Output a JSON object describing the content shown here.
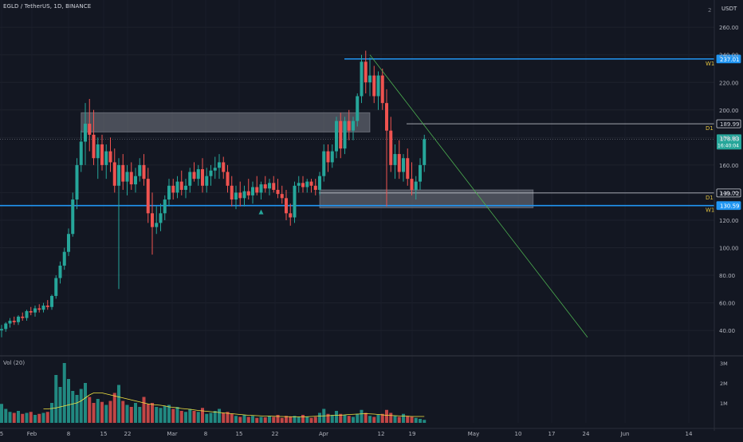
{
  "header": {
    "symbol_line": "EGLD / TetherUS, 1D, BINANCE"
  },
  "volume": {
    "label": "Vol (20)"
  },
  "price_axis": {
    "currency": "USDT",
    "ticks": [
      "260.00",
      "240.00",
      "220.00",
      "200.00",
      "180.00",
      "160.00",
      "140.00",
      "120.00",
      "100.00",
      "80.00",
      "60.00",
      "40.00"
    ],
    "top_value": "2"
  },
  "volume_axis": {
    "ticks": [
      "3M",
      "2M",
      "1M"
    ]
  },
  "time_axis": {
    "ticks": [
      "5",
      "Feb",
      "8",
      "15",
      "22",
      "Mar",
      "8",
      "15",
      "22",
      "Apr",
      "12",
      "19",
      "May",
      "10",
      "17",
      "24",
      "Jun",
      "14"
    ]
  },
  "levels": [
    {
      "price": 237.01,
      "label": "237.01",
      "tag": "W1",
      "color": "#2196f3"
    },
    {
      "price": 189.99,
      "label": "189.99",
      "tag": "D1",
      "color": "#d1d4dc"
    },
    {
      "price": 139.72,
      "label": "139.72",
      "tag": "D1",
      "color": "#d1d4dc"
    },
    {
      "price": 130.59,
      "label": "130.59",
      "tag": "W1",
      "color": "#2196f3"
    }
  ],
  "last_price": {
    "price": "178.83",
    "countdown": "16:40:04",
    "color": "#26a69a"
  },
  "colors": {
    "up": "#26a69a",
    "down": "#ef5350",
    "background": "#131722",
    "zone": "#787b86",
    "trendline": "#4caf50",
    "ma": "#f5e642"
  },
  "chart_data": {
    "type": "candlestick",
    "title": "EGLD / TetherUS, 1D, BINANCE",
    "ylim": [
      30,
      265
    ],
    "x_range_days": [
      0,
      168
    ],
    "candles": [
      {
        "d": 0,
        "o": 40,
        "h": 44,
        "l": 35,
        "c": 41
      },
      {
        "d": 1,
        "o": 41,
        "h": 46,
        "l": 39,
        "c": 45
      },
      {
        "d": 2,
        "o": 45,
        "h": 49,
        "l": 42,
        "c": 47
      },
      {
        "d": 3,
        "o": 47,
        "h": 50,
        "l": 44,
        "c": 46
      },
      {
        "d": 4,
        "o": 46,
        "h": 51,
        "l": 44,
        "c": 50
      },
      {
        "d": 5,
        "o": 50,
        "h": 53,
        "l": 47,
        "c": 49
      },
      {
        "d": 6,
        "o": 49,
        "h": 55,
        "l": 47,
        "c": 54
      },
      {
        "d": 7,
        "o": 54,
        "h": 57,
        "l": 51,
        "c": 53
      },
      {
        "d": 8,
        "o": 53,
        "h": 58,
        "l": 50,
        "c": 56
      },
      {
        "d": 9,
        "o": 56,
        "h": 59,
        "l": 53,
        "c": 55
      },
      {
        "d": 10,
        "o": 55,
        "h": 60,
        "l": 53,
        "c": 58
      },
      {
        "d": 11,
        "o": 58,
        "h": 62,
        "l": 55,
        "c": 57
      },
      {
        "d": 12,
        "o": 57,
        "h": 66,
        "l": 55,
        "c": 65
      },
      {
        "d": 13,
        "o": 65,
        "h": 80,
        "l": 63,
        "c": 78
      },
      {
        "d": 14,
        "o": 78,
        "h": 90,
        "l": 74,
        "c": 87
      },
      {
        "d": 15,
        "o": 87,
        "h": 100,
        "l": 84,
        "c": 97
      },
      {
        "d": 16,
        "o": 97,
        "h": 114,
        "l": 94,
        "c": 110
      },
      {
        "d": 17,
        "o": 110,
        "h": 140,
        "l": 108,
        "c": 135
      },
      {
        "d": 18,
        "o": 135,
        "h": 165,
        "l": 128,
        "c": 160
      },
      {
        "d": 19,
        "o": 160,
        "h": 185,
        "l": 155,
        "c": 177
      },
      {
        "d": 20,
        "o": 177,
        "h": 205,
        "l": 160,
        "c": 190
      },
      {
        "d": 21,
        "o": 190,
        "h": 208,
        "l": 170,
        "c": 182
      },
      {
        "d": 22,
        "o": 182,
        "h": 200,
        "l": 160,
        "c": 165
      },
      {
        "d": 23,
        "o": 165,
        "h": 180,
        "l": 150,
        "c": 175
      },
      {
        "d": 24,
        "o": 175,
        "h": 182,
        "l": 156,
        "c": 160
      },
      {
        "d": 25,
        "o": 160,
        "h": 175,
        "l": 150,
        "c": 170
      },
      {
        "d": 26,
        "o": 170,
        "h": 180,
        "l": 155,
        "c": 162
      },
      {
        "d": 27,
        "o": 162,
        "h": 172,
        "l": 140,
        "c": 145
      },
      {
        "d": 28,
        "o": 145,
        "h": 165,
        "l": 70,
        "c": 160
      },
      {
        "d": 29,
        "o": 160,
        "h": 168,
        "l": 142,
        "c": 148
      },
      {
        "d": 30,
        "o": 148,
        "h": 160,
        "l": 138,
        "c": 155
      },
      {
        "d": 31,
        "o": 155,
        "h": 162,
        "l": 142,
        "c": 146
      },
      {
        "d": 32,
        "o": 146,
        "h": 158,
        "l": 140,
        "c": 152
      },
      {
        "d": 33,
        "o": 152,
        "h": 165,
        "l": 148,
        "c": 160
      },
      {
        "d": 34,
        "o": 160,
        "h": 168,
        "l": 145,
        "c": 150
      },
      {
        "d": 35,
        "o": 150,
        "h": 158,
        "l": 118,
        "c": 125
      },
      {
        "d": 36,
        "o": 125,
        "h": 140,
        "l": 95,
        "c": 115
      },
      {
        "d": 37,
        "o": 115,
        "h": 130,
        "l": 110,
        "c": 118
      },
      {
        "d": 38,
        "o": 118,
        "h": 132,
        "l": 112,
        "c": 125
      },
      {
        "d": 39,
        "o": 125,
        "h": 138,
        "l": 120,
        "c": 135
      },
      {
        "d": 40,
        "o": 135,
        "h": 150,
        "l": 130,
        "c": 145
      },
      {
        "d": 41,
        "o": 145,
        "h": 150,
        "l": 135,
        "c": 140
      },
      {
        "d": 42,
        "o": 140,
        "h": 152,
        "l": 136,
        "c": 148
      },
      {
        "d": 43,
        "o": 148,
        "h": 156,
        "l": 138,
        "c": 142
      },
      {
        "d": 44,
        "o": 142,
        "h": 150,
        "l": 136,
        "c": 145
      },
      {
        "d": 45,
        "o": 145,
        "h": 158,
        "l": 140,
        "c": 155
      },
      {
        "d": 46,
        "o": 155,
        "h": 162,
        "l": 148,
        "c": 150
      },
      {
        "d": 47,
        "o": 150,
        "h": 160,
        "l": 145,
        "c": 157
      },
      {
        "d": 48,
        "o": 157,
        "h": 165,
        "l": 140,
        "c": 145
      },
      {
        "d": 49,
        "o": 145,
        "h": 158,
        "l": 140,
        "c": 152
      },
      {
        "d": 50,
        "o": 152,
        "h": 160,
        "l": 145,
        "c": 156
      },
      {
        "d": 51,
        "o": 156,
        "h": 166,
        "l": 150,
        "c": 158
      },
      {
        "d": 52,
        "o": 158,
        "h": 168,
        "l": 150,
        "c": 162
      },
      {
        "d": 53,
        "o": 162,
        "h": 166,
        "l": 150,
        "c": 155
      },
      {
        "d": 54,
        "o": 155,
        "h": 160,
        "l": 140,
        "c": 145
      },
      {
        "d": 55,
        "o": 145,
        "h": 152,
        "l": 130,
        "c": 135
      },
      {
        "d": 56,
        "o": 135,
        "h": 145,
        "l": 128,
        "c": 140
      },
      {
        "d": 57,
        "o": 140,
        "h": 148,
        "l": 130,
        "c": 136
      },
      {
        "d": 58,
        "o": 136,
        "h": 145,
        "l": 130,
        "c": 141
      },
      {
        "d": 59,
        "o": 141,
        "h": 150,
        "l": 135,
        "c": 138
      },
      {
        "d": 60,
        "o": 138,
        "h": 148,
        "l": 132,
        "c": 144
      },
      {
        "d": 61,
        "o": 144,
        "h": 152,
        "l": 138,
        "c": 140
      },
      {
        "d": 62,
        "o": 140,
        "h": 148,
        "l": 135,
        "c": 146
      },
      {
        "d": 63,
        "o": 146,
        "h": 152,
        "l": 140,
        "c": 143
      },
      {
        "d": 64,
        "o": 143,
        "h": 150,
        "l": 138,
        "c": 147
      },
      {
        "d": 65,
        "o": 147,
        "h": 152,
        "l": 140,
        "c": 142
      },
      {
        "d": 66,
        "o": 142,
        "h": 150,
        "l": 136,
        "c": 139
      },
      {
        "d": 67,
        "o": 139,
        "h": 145,
        "l": 132,
        "c": 136
      },
      {
        "d": 68,
        "o": 136,
        "h": 142,
        "l": 120,
        "c": 125
      },
      {
        "d": 69,
        "o": 125,
        "h": 132,
        "l": 116,
        "c": 122
      },
      {
        "d": 70,
        "o": 122,
        "h": 148,
        "l": 118,
        "c": 145
      },
      {
        "d": 71,
        "o": 145,
        "h": 152,
        "l": 140,
        "c": 147
      },
      {
        "d": 72,
        "o": 147,
        "h": 152,
        "l": 140,
        "c": 144
      },
      {
        "d": 73,
        "o": 144,
        "h": 150,
        "l": 140,
        "c": 148
      },
      {
        "d": 74,
        "o": 148,
        "h": 150,
        "l": 140,
        "c": 145
      },
      {
        "d": 75,
        "o": 145,
        "h": 150,
        "l": 138,
        "c": 142
      },
      {
        "d": 76,
        "o": 142,
        "h": 155,
        "l": 138,
        "c": 152
      },
      {
        "d": 77,
        "o": 152,
        "h": 175,
        "l": 148,
        "c": 170
      },
      {
        "d": 78,
        "o": 170,
        "h": 175,
        "l": 155,
        "c": 162
      },
      {
        "d": 79,
        "o": 162,
        "h": 175,
        "l": 158,
        "c": 170
      },
      {
        "d": 80,
        "o": 170,
        "h": 195,
        "l": 165,
        "c": 192
      },
      {
        "d": 81,
        "o": 192,
        "h": 198,
        "l": 165,
        "c": 172
      },
      {
        "d": 82,
        "o": 172,
        "h": 195,
        "l": 168,
        "c": 192
      },
      {
        "d": 83,
        "o": 192,
        "h": 200,
        "l": 178,
        "c": 185
      },
      {
        "d": 84,
        "o": 185,
        "h": 195,
        "l": 178,
        "c": 192
      },
      {
        "d": 85,
        "o": 192,
        "h": 212,
        "l": 188,
        "c": 210
      },
      {
        "d": 86,
        "o": 210,
        "h": 240,
        "l": 205,
        "c": 235
      },
      {
        "d": 87,
        "o": 235,
        "h": 243,
        "l": 212,
        "c": 220
      },
      {
        "d": 88,
        "o": 220,
        "h": 238,
        "l": 210,
        "c": 225
      },
      {
        "d": 89,
        "o": 225,
        "h": 232,
        "l": 205,
        "c": 210
      },
      {
        "d": 90,
        "o": 210,
        "h": 228,
        "l": 200,
        "c": 225
      },
      {
        "d": 91,
        "o": 225,
        "h": 230,
        "l": 200,
        "c": 205
      },
      {
        "d": 92,
        "o": 205,
        "h": 215,
        "l": 130,
        "c": 185
      },
      {
        "d": 93,
        "o": 185,
        "h": 195,
        "l": 155,
        "c": 160
      },
      {
        "d": 94,
        "o": 160,
        "h": 175,
        "l": 150,
        "c": 168
      },
      {
        "d": 95,
        "o": 168,
        "h": 178,
        "l": 150,
        "c": 155
      },
      {
        "d": 96,
        "o": 155,
        "h": 168,
        "l": 148,
        "c": 165
      },
      {
        "d": 97,
        "o": 165,
        "h": 172,
        "l": 145,
        "c": 150
      },
      {
        "d": 98,
        "o": 150,
        "h": 162,
        "l": 138,
        "c": 142
      },
      {
        "d": 99,
        "o": 142,
        "h": 152,
        "l": 135,
        "c": 148
      },
      {
        "d": 100,
        "o": 148,
        "h": 165,
        "l": 142,
        "c": 160
      },
      {
        "d": 101,
        "o": 160,
        "h": 182,
        "l": 155,
        "c": 178.83
      }
    ],
    "volumes": [
      {
        "d": 0,
        "v": 0.95
      },
      {
        "d": 1,
        "v": 0.7
      },
      {
        "d": 2,
        "v": 0.55
      },
      {
        "d": 3,
        "v": 0.5
      },
      {
        "d": 4,
        "v": 0.6
      },
      {
        "d": 5,
        "v": 0.45
      },
      {
        "d": 6,
        "v": 0.5
      },
      {
        "d": 7,
        "v": 0.55
      },
      {
        "d": 8,
        "v": 0.4
      },
      {
        "d": 9,
        "v": 0.45
      },
      {
        "d": 10,
        "v": 0.5
      },
      {
        "d": 11,
        "v": 0.55
      },
      {
        "d": 12,
        "v": 1.0
      },
      {
        "d": 13,
        "v": 2.4
      },
      {
        "d": 14,
        "v": 1.8
      },
      {
        "d": 15,
        "v": 3.0
      },
      {
        "d": 16,
        "v": 2.2
      },
      {
        "d": 17,
        "v": 1.6
      },
      {
        "d": 18,
        "v": 1.4
      },
      {
        "d": 19,
        "v": 1.7
      },
      {
        "d": 20,
        "v": 2.0
      },
      {
        "d": 21,
        "v": 1.3
      },
      {
        "d": 22,
        "v": 1.0
      },
      {
        "d": 23,
        "v": 1.2
      },
      {
        "d": 24,
        "v": 1.05
      },
      {
        "d": 25,
        "v": 0.9
      },
      {
        "d": 26,
        "v": 1.1
      },
      {
        "d": 27,
        "v": 1.5
      },
      {
        "d": 28,
        "v": 1.9
      },
      {
        "d": 29,
        "v": 1.1
      },
      {
        "d": 30,
        "v": 0.9
      },
      {
        "d": 31,
        "v": 0.8
      },
      {
        "d": 32,
        "v": 1.0
      },
      {
        "d": 33,
        "v": 0.8
      },
      {
        "d": 34,
        "v": 1.3
      },
      {
        "d": 35,
        "v": 0.95
      },
      {
        "d": 36,
        "v": 1.0
      },
      {
        "d": 37,
        "v": 0.8
      },
      {
        "d": 38,
        "v": 0.75
      },
      {
        "d": 39,
        "v": 0.85
      },
      {
        "d": 40,
        "v": 0.9
      },
      {
        "d": 41,
        "v": 0.7
      },
      {
        "d": 42,
        "v": 0.8
      },
      {
        "d": 43,
        "v": 0.6
      },
      {
        "d": 44,
        "v": 0.55
      },
      {
        "d": 45,
        "v": 0.7
      },
      {
        "d": 46,
        "v": 0.6
      },
      {
        "d": 47,
        "v": 0.55
      },
      {
        "d": 48,
        "v": 0.75
      },
      {
        "d": 49,
        "v": 0.45
      },
      {
        "d": 50,
        "v": 0.5
      },
      {
        "d": 51,
        "v": 0.6
      },
      {
        "d": 52,
        "v": 0.7
      },
      {
        "d": 53,
        "v": 0.5
      },
      {
        "d": 54,
        "v": 0.55
      },
      {
        "d": 55,
        "v": 0.45
      },
      {
        "d": 56,
        "v": 0.35
      },
      {
        "d": 57,
        "v": 0.3
      },
      {
        "d": 58,
        "v": 0.4
      },
      {
        "d": 59,
        "v": 0.3
      },
      {
        "d": 60,
        "v": 0.35
      },
      {
        "d": 61,
        "v": 0.25
      },
      {
        "d": 62,
        "v": 0.3
      },
      {
        "d": 63,
        "v": 0.28
      },
      {
        "d": 64,
        "v": 0.35
      },
      {
        "d": 65,
        "v": 0.3
      },
      {
        "d": 66,
        "v": 0.4
      },
      {
        "d": 67,
        "v": 0.25
      },
      {
        "d": 68,
        "v": 0.35
      },
      {
        "d": 69,
        "v": 0.3
      },
      {
        "d": 70,
        "v": 0.35
      },
      {
        "d": 71,
        "v": 0.3
      },
      {
        "d": 72,
        "v": 0.4
      },
      {
        "d": 73,
        "v": 0.3
      },
      {
        "d": 74,
        "v": 0.25
      },
      {
        "d": 75,
        "v": 0.3
      },
      {
        "d": 76,
        "v": 0.5
      },
      {
        "d": 77,
        "v": 0.7
      },
      {
        "d": 78,
        "v": 0.45
      },
      {
        "d": 79,
        "v": 0.4
      },
      {
        "d": 80,
        "v": 0.6
      },
      {
        "d": 81,
        "v": 0.45
      },
      {
        "d": 82,
        "v": 0.4
      },
      {
        "d": 83,
        "v": 0.35
      },
      {
        "d": 84,
        "v": 0.3
      },
      {
        "d": 85,
        "v": 0.45
      },
      {
        "d": 86,
        "v": 0.65
      },
      {
        "d": 87,
        "v": 0.5
      },
      {
        "d": 88,
        "v": 0.35
      },
      {
        "d": 89,
        "v": 0.3
      },
      {
        "d": 90,
        "v": 0.4
      },
      {
        "d": 91,
        "v": 0.45
      },
      {
        "d": 92,
        "v": 0.65
      },
      {
        "d": 93,
        "v": 0.5
      },
      {
        "d": 94,
        "v": 0.35
      },
      {
        "d": 95,
        "v": 0.3
      },
      {
        "d": 96,
        "v": 0.45
      },
      {
        "d": 97,
        "v": 0.35
      },
      {
        "d": 98,
        "v": 0.3
      },
      {
        "d": 99,
        "v": 0.25
      },
      {
        "d": 100,
        "v": 0.2
      },
      {
        "d": 101,
        "v": 0.15
      }
    ],
    "volume_ma": [
      0.7,
      0.7,
      0.72,
      0.75,
      0.8,
      0.85,
      0.9,
      0.95,
      1.0,
      1.1,
      1.25,
      1.4,
      1.5,
      1.5,
      1.5,
      1.45,
      1.4,
      1.35,
      1.3,
      1.25,
      1.2,
      1.15,
      1.1,
      1.05,
      1.0,
      0.95,
      0.92,
      0.9,
      0.88,
      0.85,
      0.8,
      0.78,
      0.75,
      0.72,
      0.7,
      0.68,
      0.65,
      0.62,
      0.6,
      0.58,
      0.56,
      0.54,
      0.52,
      0.5,
      0.48,
      0.46,
      0.44,
      0.42,
      0.4,
      0.38,
      0.37,
      0.36,
      0.35,
      0.34,
      0.34,
      0.33,
      0.32,
      0.32,
      0.31,
      0.31,
      0.3,
      0.3,
      0.3,
      0.31,
      0.32,
      0.33,
      0.34,
      0.35,
      0.36,
      0.37,
      0.38,
      0.38,
      0.4,
      0.42,
      0.43,
      0.44,
      0.45,
      0.46,
      0.45,
      0.44,
      0.42,
      0.4,
      0.38,
      0.37,
      0.36,
      0.35,
      0.34,
      0.33,
      0.32,
      0.32,
      0.32,
      0.32
    ],
    "zones": [
      {
        "d_from": 19,
        "d_to": 88,
        "p_low": 184,
        "p_high": 198
      },
      {
        "d_from": 76,
        "d_to": 127,
        "p_low": 129,
        "p_high": 142
      }
    ],
    "trendline": {
      "from": {
        "d": 88,
        "p": 240
      },
      "to": {
        "d": 140,
        "p": 35
      }
    },
    "marker": {
      "d": 62,
      "p": 126
    }
  }
}
